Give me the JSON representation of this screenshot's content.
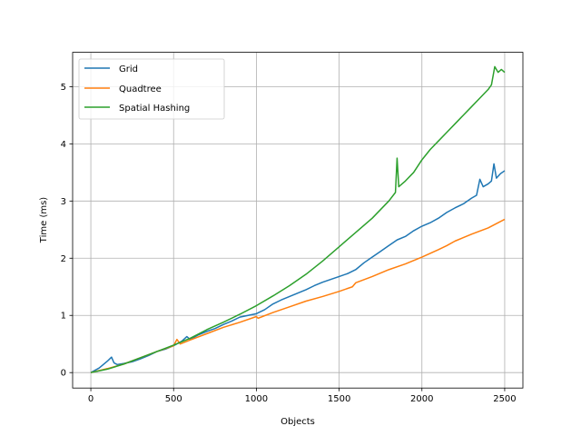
{
  "chart_data": {
    "type": "line",
    "title": "",
    "xlabel": "Objects",
    "ylabel": "Time (ms)",
    "xlim": [
      -110,
      2610
    ],
    "ylim": [
      -0.27,
      5.6
    ],
    "xticks": [
      0,
      500,
      1000,
      1500,
      2000,
      2500
    ],
    "yticks": [
      0,
      1,
      2,
      3,
      4,
      5
    ],
    "grid": true,
    "legend_position": "top-left",
    "series": [
      {
        "name": "Grid",
        "color": "#1f77b4",
        "points": [
          [
            0,
            0.0
          ],
          [
            50,
            0.08
          ],
          [
            100,
            0.2
          ],
          [
            125,
            0.27
          ],
          [
            140,
            0.17
          ],
          [
            160,
            0.14
          ],
          [
            200,
            0.16
          ],
          [
            250,
            0.19
          ],
          [
            300,
            0.24
          ],
          [
            350,
            0.3
          ],
          [
            400,
            0.37
          ],
          [
            450,
            0.41
          ],
          [
            500,
            0.47
          ],
          [
            550,
            0.55
          ],
          [
            580,
            0.63
          ],
          [
            600,
            0.58
          ],
          [
            650,
            0.66
          ],
          [
            700,
            0.72
          ],
          [
            750,
            0.77
          ],
          [
            800,
            0.84
          ],
          [
            850,
            0.9
          ],
          [
            900,
            0.97
          ],
          [
            950,
            1.0
          ],
          [
            1000,
            1.03
          ],
          [
            1050,
            1.1
          ],
          [
            1100,
            1.2
          ],
          [
            1150,
            1.27
          ],
          [
            1200,
            1.33
          ],
          [
            1250,
            1.39
          ],
          [
            1300,
            1.45
          ],
          [
            1350,
            1.52
          ],
          [
            1400,
            1.58
          ],
          [
            1450,
            1.63
          ],
          [
            1500,
            1.68
          ],
          [
            1550,
            1.73
          ],
          [
            1600,
            1.8
          ],
          [
            1650,
            1.92
          ],
          [
            1700,
            2.02
          ],
          [
            1750,
            2.12
          ],
          [
            1800,
            2.22
          ],
          [
            1850,
            2.32
          ],
          [
            1900,
            2.38
          ],
          [
            1950,
            2.48
          ],
          [
            2000,
            2.56
          ],
          [
            2050,
            2.62
          ],
          [
            2100,
            2.7
          ],
          [
            2150,
            2.8
          ],
          [
            2200,
            2.88
          ],
          [
            2250,
            2.95
          ],
          [
            2300,
            3.05
          ],
          [
            2330,
            3.1
          ],
          [
            2350,
            3.38
          ],
          [
            2370,
            3.25
          ],
          [
            2400,
            3.3
          ],
          [
            2420,
            3.35
          ],
          [
            2435,
            3.65
          ],
          [
            2450,
            3.4
          ],
          [
            2475,
            3.48
          ],
          [
            2500,
            3.53
          ]
        ]
      },
      {
        "name": "Quadtree",
        "color": "#ff7f0e",
        "points": [
          [
            0,
            0.0
          ],
          [
            100,
            0.07
          ],
          [
            200,
            0.15
          ],
          [
            300,
            0.26
          ],
          [
            400,
            0.37
          ],
          [
            500,
            0.47
          ],
          [
            520,
            0.58
          ],
          [
            540,
            0.5
          ],
          [
            600,
            0.57
          ],
          [
            700,
            0.68
          ],
          [
            800,
            0.79
          ],
          [
            900,
            0.88
          ],
          [
            1000,
            0.98
          ],
          [
            1010,
            0.95
          ],
          [
            1100,
            1.05
          ],
          [
            1200,
            1.15
          ],
          [
            1300,
            1.25
          ],
          [
            1400,
            1.33
          ],
          [
            1500,
            1.42
          ],
          [
            1580,
            1.5
          ],
          [
            1600,
            1.57
          ],
          [
            1700,
            1.68
          ],
          [
            1800,
            1.8
          ],
          [
            1900,
            1.9
          ],
          [
            2000,
            2.02
          ],
          [
            2100,
            2.15
          ],
          [
            2150,
            2.22
          ],
          [
            2200,
            2.3
          ],
          [
            2300,
            2.42
          ],
          [
            2400,
            2.53
          ],
          [
            2500,
            2.68
          ]
        ]
      },
      {
        "name": "Spatial Hashing",
        "color": "#2ca02c",
        "points": [
          [
            0,
            0.0
          ],
          [
            100,
            0.06
          ],
          [
            200,
            0.15
          ],
          [
            300,
            0.26
          ],
          [
            400,
            0.37
          ],
          [
            500,
            0.48
          ],
          [
            600,
            0.6
          ],
          [
            700,
            0.75
          ],
          [
            800,
            0.88
          ],
          [
            900,
            1.02
          ],
          [
            1000,
            1.17
          ],
          [
            1100,
            1.34
          ],
          [
            1200,
            1.52
          ],
          [
            1300,
            1.72
          ],
          [
            1400,
            1.95
          ],
          [
            1500,
            2.2
          ],
          [
            1600,
            2.45
          ],
          [
            1700,
            2.7
          ],
          [
            1800,
            3.0
          ],
          [
            1840,
            3.15
          ],
          [
            1850,
            3.75
          ],
          [
            1860,
            3.25
          ],
          [
            1900,
            3.35
          ],
          [
            1950,
            3.5
          ],
          [
            2000,
            3.72
          ],
          [
            2050,
            3.9
          ],
          [
            2100,
            4.05
          ],
          [
            2150,
            4.2
          ],
          [
            2200,
            4.35
          ],
          [
            2250,
            4.5
          ],
          [
            2300,
            4.65
          ],
          [
            2350,
            4.8
          ],
          [
            2400,
            4.95
          ],
          [
            2420,
            5.03
          ],
          [
            2440,
            5.35
          ],
          [
            2460,
            5.25
          ],
          [
            2480,
            5.3
          ],
          [
            2500,
            5.25
          ]
        ]
      }
    ]
  }
}
